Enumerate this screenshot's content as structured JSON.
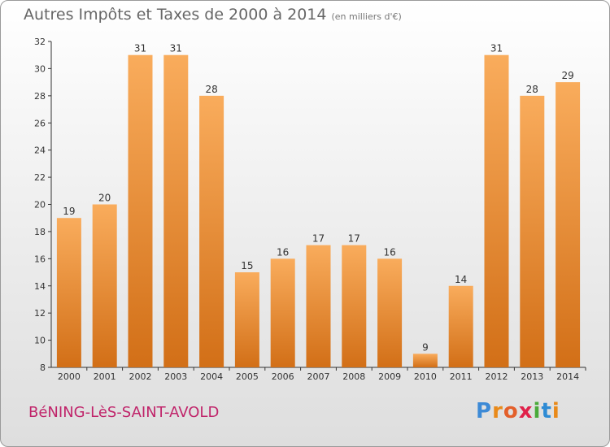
{
  "title": "Autres Impôts et Taxes de 2000 à 2014",
  "subtitle": "(en milliers d'€)",
  "commune": "BéNING-LèS-SAINT-AVOLD",
  "logo": {
    "letters": [
      "P",
      "r",
      "o",
      "x",
      "i",
      "t",
      "i"
    ],
    "colors": [
      "#3d8ad6",
      "#e98a1a",
      "#e35f2a",
      "#e0214a",
      "#4aaa3a",
      "#2e8bd4",
      "#e98a1a"
    ]
  },
  "colors": {
    "bar_light": "#f9ac5c",
    "bar_dark": "#d26f17"
  },
  "chart_data": {
    "type": "bar",
    "categories": [
      "2000",
      "2001",
      "2002",
      "2003",
      "2004",
      "2005",
      "2006",
      "2007",
      "2008",
      "2009",
      "2010",
      "2011",
      "2012",
      "2013",
      "2014"
    ],
    "values": [
      19,
      20,
      31,
      31,
      28,
      15,
      16,
      17,
      17,
      16,
      9,
      14,
      31,
      28,
      29
    ],
    "ylim": [
      8,
      32
    ],
    "yticks": [
      8,
      10,
      12,
      14,
      16,
      18,
      20,
      22,
      24,
      26,
      28,
      30,
      32
    ],
    "grid": false,
    "data_labels": true
  }
}
